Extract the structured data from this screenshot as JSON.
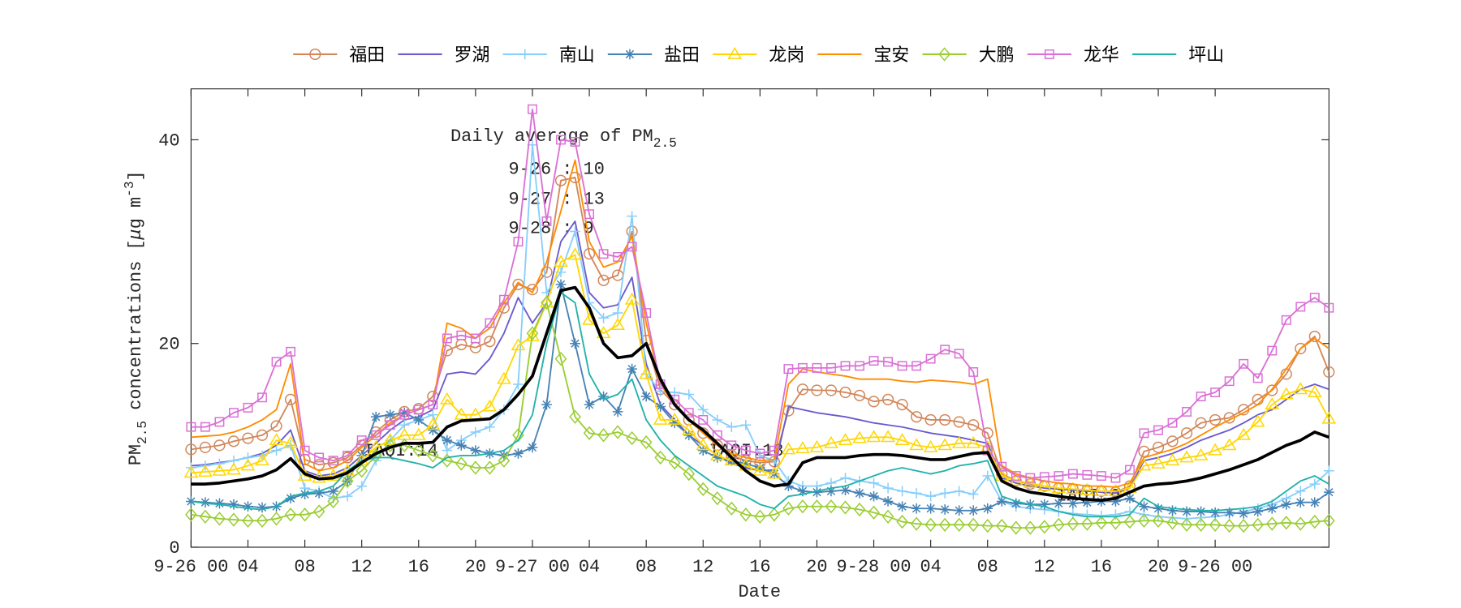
{
  "chart_data": {
    "type": "line",
    "xlabel": "Date",
    "ylabel": [
      {
        "text": "PM"
      },
      {
        "text": "2.5",
        "sub": true
      },
      {
        "text": " concentrations ["
      },
      {
        "text": "μ",
        "italic": true
      },
      {
        "text": "g m"
      },
      {
        "text": "-3",
        "sup": true
      },
      {
        "text": "]"
      }
    ],
    "box_title": {
      "text": "Daily average of PM",
      "sub": "2.5"
    },
    "annotations": [
      "9-26 : 10",
      "9-27 : 13",
      "9-28 : 9",
      "IAQI:14",
      "IAQI:18",
      "IAQI:9"
    ],
    "xlim": [
      0,
      80
    ],
    "ylim": [
      0,
      45
    ],
    "yticks": [
      0,
      20,
      40
    ],
    "xticks": [
      {
        "value": 0,
        "label": "9-26 00"
      },
      {
        "value": 4,
        "label": "04"
      },
      {
        "value": 8,
        "label": "08"
      },
      {
        "value": 12,
        "label": "12"
      },
      {
        "value": 16,
        "label": "16"
      },
      {
        "value": 20,
        "label": "20"
      },
      {
        "value": 24,
        "label": "9-27 00"
      },
      {
        "value": 28,
        "label": "04"
      },
      {
        "value": 32,
        "label": "08"
      },
      {
        "value": 36,
        "label": "12"
      },
      {
        "value": 40,
        "label": "16"
      },
      {
        "value": 44,
        "label": "20"
      },
      {
        "value": 48,
        "label": "9-28 00"
      },
      {
        "value": 52,
        "label": "04"
      },
      {
        "value": 56,
        "label": "08"
      },
      {
        "value": 60,
        "label": "12"
      },
      {
        "value": 64,
        "label": "16"
      },
      {
        "value": 68,
        "label": "20"
      },
      {
        "value": 72,
        "label": "9-26 00"
      }
    ],
    "grid": false,
    "legend": "top",
    "x": [
      0,
      1,
      2,
      3,
      4,
      5,
      6,
      7,
      8,
      9,
      10,
      11,
      12,
      13,
      14,
      15,
      16,
      17,
      18,
      19,
      20,
      21,
      22,
      23,
      24,
      25,
      26,
      27,
      28,
      29,
      30,
      31,
      32,
      33,
      34,
      35,
      36,
      37,
      38,
      39,
      40,
      41,
      42,
      43,
      44,
      45,
      46,
      47,
      48,
      49,
      50,
      51,
      52,
      53,
      54,
      55,
      56,
      57,
      58,
      59,
      60,
      61,
      62,
      63,
      64,
      65,
      66,
      67,
      68,
      69,
      70,
      71,
      72,
      73,
      74,
      75,
      76,
      77,
      78,
      79,
      80
    ],
    "series": [
      {
        "name": "福田",
        "color": "#d2875a",
        "marker": "o",
        "values": [
          9.6,
          9.8,
          10,
          10.4,
          10.7,
          11,
          11.9,
          14.5,
          8.6,
          8.1,
          8.3,
          8.8,
          10,
          11.3,
          12.5,
          13.3,
          13.6,
          14.8,
          19.3,
          19.9,
          19.6,
          20.2,
          23.5,
          25.8,
          25.3,
          27,
          36,
          36.3,
          28.8,
          26.2,
          26.7,
          31,
          20.3,
          15.5,
          14,
          12.5,
          11.2,
          10,
          9,
          8.5,
          8.3,
          8.4,
          13.4,
          15.5,
          15.4,
          15.4,
          15.2,
          14.9,
          14.3,
          14.5,
          14,
          12.8,
          12.5,
          12.5,
          12.3,
          12,
          11.2,
          7.2,
          6.5,
          6.2,
          6,
          5.8,
          5.7,
          5.6,
          5.5,
          5.4,
          6,
          9.4,
          9.8,
          10.4,
          11.2,
          12.2,
          12.5,
          12.7,
          13.5,
          14.5,
          15.4,
          17,
          19.5,
          20.7,
          17.2
        ]
      },
      {
        "name": "罗湖",
        "color": "#6a5acd",
        "marker": "none",
        "values": [
          8,
          8.1,
          8.3,
          8.5,
          8.8,
          9.2,
          10,
          11.5,
          7.5,
          7,
          7.2,
          7.8,
          9,
          10.2,
          11.5,
          12.5,
          12.8,
          13.5,
          17,
          17.2,
          17,
          18.5,
          21,
          24.5,
          22,
          24,
          30,
          32,
          25,
          23.5,
          23.8,
          26.5,
          18,
          14,
          12.5,
          11,
          10,
          9,
          8.2,
          7.8,
          7.5,
          7.6,
          13.8,
          13.5,
          13.2,
          13,
          12.8,
          12.5,
          12.2,
          12,
          11.8,
          11.5,
          11.2,
          11,
          10.8,
          10.5,
          10.2,
          6.8,
          6.3,
          6,
          5.8,
          5.7,
          5.6,
          5.5,
          5.4,
          5.3,
          5.8,
          8.5,
          8.8,
          9.2,
          9.8,
          10.5,
          11,
          11.5,
          12.2,
          13,
          13.5,
          14.5,
          15.5,
          16,
          15.5
        ]
      },
      {
        "name": "南山",
        "color": "#87cefa",
        "marker": "+",
        "values": [
          7.8,
          8,
          8.2,
          8.5,
          8.8,
          9,
          9.5,
          10,
          5.8,
          5.5,
          4.8,
          5,
          6,
          8.5,
          10.5,
          12,
          12.5,
          13,
          9.5,
          10.5,
          11.3,
          11.8,
          13.5,
          16,
          39.5,
          25,
          27,
          31,
          24,
          22.5,
          23,
          32.5,
          17,
          15.3,
          15.2,
          15,
          13.5,
          12.5,
          11.8,
          12,
          9,
          8.5,
          6.5,
          6,
          6,
          6.3,
          6.8,
          6.5,
          6.3,
          5.8,
          5.5,
          5.3,
          5,
          5.3,
          5.5,
          5.2,
          7,
          4.5,
          4,
          3.8,
          3.7,
          3.5,
          3.3,
          3.2,
          3.1,
          3.2,
          3.5,
          3.2,
          3,
          2.9,
          2.8,
          2.9,
          3,
          3.2,
          3.5,
          3.8,
          4.2,
          4.8,
          5.5,
          6.2,
          7.5
        ]
      },
      {
        "name": "盐田",
        "color": "#4682b4",
        "marker": "*",
        "values": [
          4.5,
          4.4,
          4.3,
          4.2,
          4,
          3.9,
          4,
          4.8,
          5.2,
          5.3,
          5.5,
          6.5,
          9,
          12.8,
          13,
          13.2,
          12.5,
          11.5,
          10.5,
          10,
          9.5,
          9.2,
          9,
          9.2,
          9.8,
          14,
          25.8,
          20,
          14,
          14.8,
          13.3,
          17.5,
          14.8,
          13.8,
          12.2,
          11,
          9.5,
          8.8,
          8.5,
          8.2,
          7.8,
          7.2,
          6,
          5.5,
          5.4,
          5.5,
          5.6,
          5.3,
          5,
          4.5,
          4,
          3.8,
          3.8,
          3.7,
          3.6,
          3.6,
          3.8,
          4.5,
          4.3,
          4.2,
          4.2,
          4.3,
          4.3,
          4.4,
          4.5,
          4.5,
          4.8,
          4,
          3.8,
          3.6,
          3.5,
          3.5,
          3.4,
          3.4,
          3.3,
          3.5,
          3.8,
          4.2,
          4.4,
          4.4,
          5.4
        ]
      },
      {
        "name": "龙岗",
        "color": "#ffd700",
        "marker": "^",
        "values": [
          7.3,
          7.4,
          7.5,
          7.6,
          8,
          8.5,
          10.5,
          10.2,
          7,
          6.8,
          7,
          7.5,
          8.5,
          9.8,
          10.5,
          11,
          11,
          12,
          14.5,
          13,
          13,
          13.8,
          16.5,
          19.8,
          20.7,
          24,
          28,
          28.7,
          22.3,
          21,
          21.8,
          24.3,
          17,
          12.5,
          12.5,
          11.5,
          10,
          9,
          8.5,
          8,
          7.5,
          7.2,
          9.6,
          9.7,
          9.8,
          10.2,
          10.5,
          10.7,
          10.8,
          10.8,
          10.5,
          10,
          9.8,
          10,
          10.2,
          10.2,
          9.8,
          7,
          6.5,
          6.3,
          6,
          5.8,
          5.7,
          5.6,
          5.5,
          5.5,
          5.8,
          8,
          8.2,
          8.5,
          8.8,
          9,
          9.5,
          10,
          11,
          12.3,
          14,
          15,
          15.5,
          15.2,
          12.6
        ]
      },
      {
        "name": "宝安",
        "color": "#ff8c00",
        "marker": "none",
        "values": [
          10.8,
          10.9,
          11,
          11.3,
          11.8,
          12.5,
          13.5,
          18,
          8.2,
          7.5,
          7.8,
          8.5,
          9.8,
          11,
          12.2,
          13,
          13.5,
          14,
          22,
          21.5,
          20.5,
          21.5,
          24,
          26,
          25,
          28,
          33,
          38,
          30,
          27.5,
          28,
          30.5,
          22,
          16,
          14,
          12.5,
          11.2,
          10,
          9.2,
          8.8,
          8.5,
          8.6,
          16,
          17.5,
          17.2,
          17,
          16.8,
          16.5,
          16.5,
          16.5,
          16.3,
          16.2,
          16.4,
          16.3,
          16.2,
          16,
          16.5,
          8,
          7.2,
          6.8,
          6.5,
          6.3,
          6.2,
          6,
          6,
          5.9,
          6.3,
          8.8,
          9.2,
          9.6,
          10.2,
          11,
          11.8,
          12.5,
          13.2,
          14,
          15.5,
          17.5,
          19.5,
          20.5,
          19.5
        ]
      },
      {
        "name": "大鹏",
        "color": "#9acd32",
        "marker": "d",
        "values": [
          3.2,
          3,
          2.8,
          2.7,
          2.6,
          2.6,
          2.8,
          3.2,
          3.2,
          3.5,
          4.5,
          6.5,
          7.5,
          9,
          10,
          10,
          9.5,
          9,
          8.5,
          8.2,
          7.8,
          7.8,
          8.5,
          11,
          21,
          24,
          18.5,
          12.8,
          11.2,
          11,
          11.3,
          10.7,
          10.3,
          8.8,
          8.3,
          7.2,
          5.7,
          4.8,
          3.8,
          3.2,
          3,
          3.2,
          3.8,
          4,
          4,
          4,
          3.9,
          3.7,
          3.4,
          3,
          2.5,
          2.3,
          2.2,
          2.2,
          2.2,
          2.2,
          2.1,
          2.1,
          1.9,
          1.9,
          2,
          2.2,
          2.3,
          2.3,
          2.4,
          2.4,
          2.5,
          2.6,
          2.6,
          2.4,
          2.2,
          2.2,
          2.2,
          2.1,
          2.1,
          2.2,
          2.3,
          2.4,
          2.3,
          2.5,
          2.6
        ]
      },
      {
        "name": "龙华",
        "color": "#da70d6",
        "marker": "s",
        "values": [
          11.8,
          11.8,
          12.3,
          13.2,
          13.7,
          14.7,
          18.2,
          19.2,
          9.5,
          8.8,
          8.5,
          9,
          10.5,
          11,
          12,
          13,
          13.5,
          14,
          20.5,
          20.8,
          20.5,
          22,
          24.3,
          30,
          43,
          32,
          40,
          39.8,
          32.7,
          28.8,
          28.5,
          29.5,
          23,
          16,
          14.5,
          13.2,
          12.5,
          11,
          10,
          9.5,
          9.2,
          9.5,
          17.5,
          17.6,
          17.6,
          17.6,
          17.8,
          17.8,
          18.3,
          18.2,
          17.8,
          17.8,
          18.5,
          19.4,
          19,
          17.2,
          9.5,
          7.9,
          7,
          6.8,
          6.9,
          7,
          7.2,
          7.1,
          7,
          6.8,
          7.6,
          11.2,
          11.5,
          12.2,
          13.3,
          14.8,
          15.2,
          16.3,
          18,
          16.6,
          19.3,
          22.3,
          23.6,
          24.5,
          23.5
        ]
      },
      {
        "name": "坪山",
        "color": "#20b2aa",
        "marker": "none",
        "values": [
          4.5,
          4.3,
          4.2,
          4,
          3.8,
          3.7,
          4,
          5,
          5.3,
          5.5,
          6,
          7.5,
          8.5,
          8.8,
          8.8,
          8.5,
          8.2,
          7.8,
          8.8,
          9,
          9,
          9.2,
          9.5,
          10.5,
          13,
          20,
          25,
          24,
          17,
          14.5,
          15,
          16.5,
          12.5,
          10.5,
          9,
          8,
          7,
          6,
          5.5,
          5,
          4.2,
          3.8,
          5,
          5.2,
          5.5,
          5.8,
          6,
          6.5,
          7,
          7.5,
          7.8,
          7.5,
          7.2,
          7.5,
          8,
          8.2,
          8.5,
          5,
          4.5,
          4.2,
          4,
          3.5,
          3.2,
          3,
          3,
          3,
          3.2,
          4.8,
          4,
          3.8,
          3.7,
          3.6,
          3.6,
          3.7,
          3.8,
          4,
          4.5,
          5.5,
          6.5,
          7,
          6.2
        ]
      }
    ],
    "mean": {
      "color": "#000000",
      "values": [
        6.2,
        6.2,
        6.3,
        6.5,
        6.7,
        7,
        7.6,
        8.7,
        7.2,
        6.7,
        6.8,
        7.3,
        8.3,
        9.2,
        9.8,
        10.2,
        10.2,
        10.3,
        11.8,
        12.4,
        12.5,
        12.6,
        13.5,
        15,
        16.8,
        21,
        25.2,
        25.5,
        23.5,
        20,
        18.6,
        18.8,
        20,
        16.5,
        14,
        12.5,
        11.5,
        10.2,
        8.8,
        7.5,
        6.5,
        6,
        6.2,
        8.3,
        8.8,
        8.8,
        8.8,
        9,
        9.1,
        9.1,
        9,
        8.8,
        8.6,
        8.6,
        8.9,
        9.2,
        9.3,
        6.5,
        5.8,
        5.4,
        5.2,
        5,
        4.8,
        4.7,
        4.6,
        4.8,
        5.4,
        6,
        6.2,
        6.3,
        6.5,
        6.8,
        7.2,
        7.6,
        8.1,
        8.6,
        9.3,
        10,
        10.5,
        11.3,
        10.8
      ]
    }
  }
}
